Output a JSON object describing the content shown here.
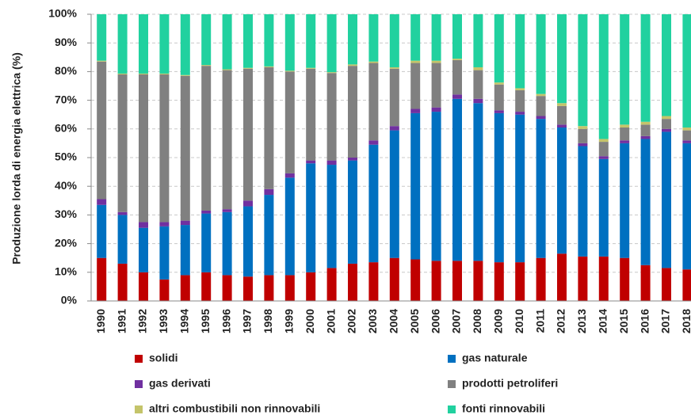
{
  "chart_data": {
    "type": "stacked_bar",
    "y_label": "Produzione lorda di energia elettrica (%)",
    "categories": [
      "1990",
      "1991",
      "1992",
      "1993",
      "1994",
      "1995",
      "1996",
      "1997",
      "1998",
      "1999",
      "2000",
      "2001",
      "2002",
      "2003",
      "2004",
      "2005",
      "2006",
      "2007",
      "2008",
      "2009",
      "2010",
      "2011",
      "2012",
      "2013",
      "2014",
      "2015",
      "2016",
      "2017",
      "2018"
    ],
    "series": [
      {
        "name": "solidi",
        "color": "#c00000",
        "values": [
          15,
          13,
          10,
          7.5,
          9,
          10,
          9,
          8.5,
          9,
          9,
          10,
          11.5,
          13,
          13.5,
          15,
          14.5,
          14,
          14,
          14,
          13.5,
          13.5,
          15,
          16.5,
          15.5,
          15.5,
          15,
          12.5,
          11.5,
          11
        ]
      },
      {
        "name": "gas naturale",
        "color": "#0070c0",
        "values": [
          18.5,
          17,
          15.5,
          18.5,
          17.5,
          20.5,
          22,
          24.5,
          28,
          34,
          38,
          36,
          36,
          41,
          44.5,
          51,
          52,
          56.5,
          55,
          52,
          51.5,
          48.5,
          44,
          38.5,
          34,
          40,
          44,
          47.5,
          44
        ]
      },
      {
        "name": "gas derivati",
        "color": "#7030a0",
        "values": [
          2,
          1,
          2,
          1.5,
          1.5,
          1,
          1,
          2,
          2,
          1.5,
          1,
          1.5,
          1,
          1.5,
          1.5,
          1.5,
          1.5,
          1.5,
          1.5,
          1,
          1,
          1,
          1,
          1,
          1,
          1,
          1,
          1,
          1
        ]
      },
      {
        "name": "prodotti petroliferi",
        "color": "#808080",
        "values": [
          48,
          48,
          51.5,
          51.5,
          50.5,
          50.5,
          48.5,
          46,
          42.5,
          35.5,
          32,
          30.5,
          32,
          27,
          20,
          16,
          15.5,
          12,
          10,
          9,
          7.5,
          7,
          6.5,
          5,
          5,
          4.5,
          4,
          3.5,
          3.5
        ]
      },
      {
        "name": "altri combustibili non rinnovabili",
        "color": "#c4c46a",
        "values": [
          0.3,
          0.3,
          0.3,
          0.3,
          0.3,
          0.3,
          0.3,
          0.3,
          0.3,
          0.3,
          0.3,
          0.3,
          0.5,
          0.5,
          0.5,
          0.8,
          0.8,
          0.5,
          1,
          0.7,
          0.7,
          0.7,
          1,
          1,
          1,
          1,
          1,
          1,
          1
        ]
      },
      {
        "name": "fonti rinnovabili",
        "color": "#21d19f",
        "values": [
          16.2,
          20.7,
          20.7,
          20.7,
          21.2,
          17.7,
          19.2,
          18.7,
          18.2,
          19.7,
          18.7,
          20.2,
          17.5,
          16.5,
          18.5,
          16.2,
          16.2,
          15.5,
          18.5,
          23.8,
          25.8,
          27.8,
          31,
          39,
          43.5,
          38.5,
          37.5,
          35.5,
          39.5
        ]
      }
    ],
    "ylim": [
      0,
      100
    ],
    "yticks": [
      {
        "value": 0,
        "label": "0%"
      },
      {
        "value": 10,
        "label": "10%"
      },
      {
        "value": 20,
        "label": "20%"
      },
      {
        "value": 30,
        "label": "30%"
      },
      {
        "value": 40,
        "label": "40%"
      },
      {
        "value": 50,
        "label": "50%"
      },
      {
        "value": 60,
        "label": "60%"
      },
      {
        "value": 70,
        "label": "70%"
      },
      {
        "value": 80,
        "label": "80%"
      },
      {
        "value": 90,
        "label": "90%"
      },
      {
        "value": 100,
        "label": "100%"
      }
    ],
    "grid": true
  }
}
